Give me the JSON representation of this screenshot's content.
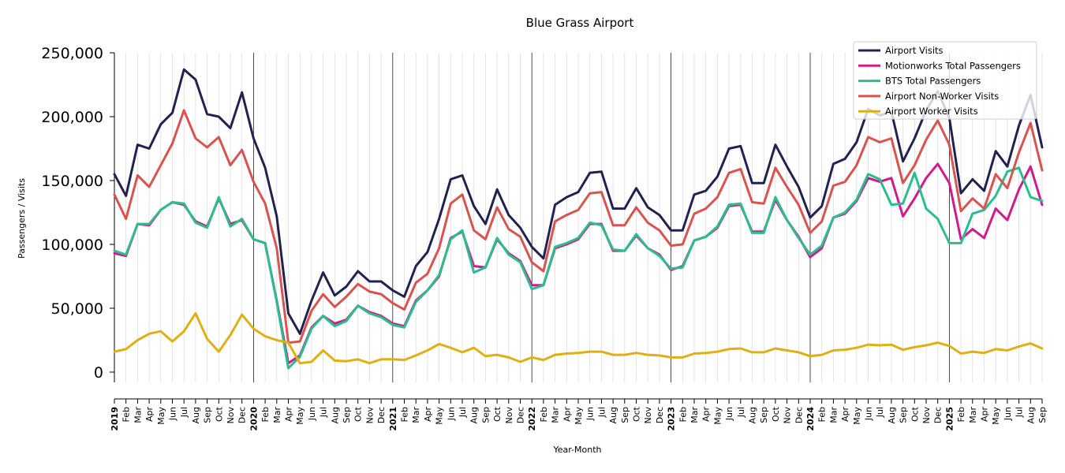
{
  "chart_data": {
    "type": "line",
    "title": "Blue Grass Airport",
    "xlabel": "Year-Month",
    "ylabel": "Passengers / Visits",
    "ylim": [
      -8000,
      252000
    ],
    "y_ticks": [
      0,
      50000,
      100000,
      150000,
      200000,
      250000
    ],
    "y_tick_labels": [
      "0",
      "50,000",
      "100,000",
      "150,000",
      "200,000",
      "250,000"
    ],
    "grid": "vertical monthly lines, dark line at each January",
    "legend_position": "top-right",
    "x": [
      "2019-01",
      "2019-02",
      "2019-03",
      "2019-04",
      "2019-05",
      "2019-06",
      "2019-07",
      "2019-08",
      "2019-09",
      "2019-10",
      "2019-11",
      "2019-12",
      "2020-01",
      "2020-02",
      "2020-03",
      "2020-04",
      "2020-05",
      "2020-06",
      "2020-07",
      "2020-08",
      "2020-09",
      "2020-10",
      "2020-11",
      "2020-12",
      "2021-01",
      "2021-02",
      "2021-03",
      "2021-04",
      "2021-05",
      "2021-06",
      "2021-07",
      "2021-08",
      "2021-09",
      "2021-10",
      "2021-11",
      "2021-12",
      "2022-01",
      "2022-02",
      "2022-03",
      "2022-04",
      "2022-05",
      "2022-06",
      "2022-07",
      "2022-08",
      "2022-09",
      "2022-10",
      "2022-11",
      "2022-12",
      "2023-01",
      "2023-02",
      "2023-03",
      "2023-04",
      "2023-05",
      "2023-06",
      "2023-07",
      "2023-08",
      "2023-09",
      "2023-10",
      "2023-11",
      "2023-12",
      "2024-01",
      "2024-02",
      "2024-03",
      "2024-04",
      "2024-05",
      "2024-06",
      "2024-07",
      "2024-08",
      "2024-09",
      "2024-10",
      "2024-11",
      "2024-12",
      "2025-01",
      "2025-02",
      "2025-03",
      "2025-04",
      "2025-05",
      "2025-06",
      "2025-07",
      "2025-08",
      "2025-09"
    ],
    "x_tick_labels": [
      "2019",
      "Feb",
      "Mar",
      "Apr",
      "May",
      "Jun",
      "Jul",
      "Aug",
      "Sep",
      "Oct",
      "Nov",
      "Dec",
      "2020",
      "Feb",
      "Mar",
      "Apr",
      "May",
      "Jun",
      "Jul",
      "Aug",
      "Sep",
      "Oct",
      "Nov",
      "Dec",
      "2021",
      "Feb",
      "Mar",
      "Apr",
      "May",
      "Jun",
      "Jul",
      "Aug",
      "Sep",
      "Oct",
      "Nov",
      "Dec",
      "2022",
      "Feb",
      "Mar",
      "Apr",
      "May",
      "Jun",
      "Jul",
      "Aug",
      "Sep",
      "Oct",
      "Nov",
      "Dec",
      "2023",
      "Feb",
      "Mar",
      "Apr",
      "May",
      "Jun",
      "Jul",
      "Aug",
      "Sep",
      "Oct",
      "Nov",
      "Dec",
      "2024",
      "Feb",
      "Mar",
      "Apr",
      "May",
      "Jun",
      "Jul",
      "Aug",
      "Sep",
      "Oct",
      "Nov",
      "Dec",
      "2025",
      "Feb",
      "Mar",
      "Apr",
      "May",
      "Jun",
      "Jul",
      "Aug",
      "Sep"
    ],
    "series": [
      {
        "name": "Airport Visits",
        "color": "#22224f",
        "values": [
          155000,
          138000,
          178000,
          175000,
          194000,
          203000,
          237000,
          229000,
          202000,
          200000,
          191000,
          219000,
          183000,
          160000,
          122000,
          46000,
          30000,
          56000,
          78000,
          60000,
          67000,
          79000,
          71000,
          71000,
          64000,
          59000,
          83000,
          94000,
          120000,
          151000,
          154000,
          130000,
          116000,
          143000,
          123000,
          113000,
          98000,
          89000,
          131000,
          137000,
          141000,
          156000,
          157000,
          128000,
          128000,
          144000,
          129000,
          123000,
          111000,
          111000,
          139000,
          142000,
          153000,
          175000,
          177000,
          148000,
          148000,
          178000,
          161000,
          145000,
          121000,
          130000,
          163000,
          167000,
          180000,
          206000,
          201000,
          204000,
          165000,
          183000,
          205000,
          220000,
          199000,
          140000,
          151000,
          142000,
          173000,
          161000,
          193000,
          217000,
          176000
        ]
      },
      {
        "name": "Motionworks Total Passengers",
        "color": "#d01c8b",
        "values": [
          93000,
          91000,
          116000,
          115000,
          127000,
          133000,
          131000,
          118000,
          114000,
          136000,
          116000,
          119000,
          104000,
          101000,
          56000,
          7000,
          13000,
          35000,
          44000,
          38000,
          41000,
          52000,
          47000,
          44000,
          38000,
          36000,
          56000,
          64000,
          75000,
          105000,
          110000,
          83000,
          82000,
          104000,
          93000,
          87000,
          68000,
          68000,
          97000,
          100000,
          104000,
          116000,
          116000,
          95000,
          95000,
          107000,
          97000,
          92000,
          80000,
          83000,
          103000,
          106000,
          113000,
          130000,
          131000,
          110000,
          110000,
          135000,
          119000,
          106000,
          90000,
          97000,
          121000,
          124000,
          134000,
          152000,
          149000,
          152000,
          122000,
          136000,
          152000,
          163000,
          148000,
          104000,
          112000,
          105000,
          128000,
          119000,
          143000,
          161000,
          131000
        ]
      },
      {
        "name": "BTS Total Passengers",
        "color": "#2bbd8f",
        "values": [
          95000,
          92000,
          116000,
          116000,
          127000,
          133000,
          132000,
          117000,
          113000,
          137000,
          114000,
          120000,
          104000,
          101000,
          55000,
          3000,
          12000,
          34000,
          44000,
          36000,
          40000,
          52000,
          46000,
          43000,
          37000,
          35000,
          55000,
          64000,
          76000,
          104000,
          111000,
          78000,
          82000,
          105000,
          92000,
          86000,
          65000,
          68000,
          98000,
          101000,
          105000,
          117000,
          115000,
          96000,
          95000,
          108000,
          97000,
          91000,
          81000,
          82000,
          103000,
          106000,
          114000,
          131000,
          132000,
          109000,
          109000,
          137000,
          119000,
          105000,
          92000,
          99000,
          121000,
          125000,
          135000,
          155000,
          151000,
          131000,
          132000,
          156000,
          128000,
          120000,
          101000,
          101000,
          124000,
          127000,
          138000,
          157000,
          160000,
          137000,
          134000
        ]
      },
      {
        "name": "Airport Non-Worker Visits",
        "color": "#d9534f",
        "values": [
          139000,
          120000,
          154000,
          145000,
          162000,
          179000,
          205000,
          183000,
          176000,
          184000,
          162000,
          174000,
          149000,
          132000,
          97000,
          23000,
          24000,
          48000,
          61000,
          51000,
          59000,
          69000,
          63000,
          61000,
          54000,
          49000,
          70000,
          77000,
          97000,
          132000,
          139000,
          111000,
          104000,
          129000,
          112000,
          106000,
          86000,
          79000,
          118000,
          123000,
          127000,
          140000,
          141000,
          115000,
          115000,
          129000,
          117000,
          111000,
          99000,
          100000,
          124000,
          128000,
          137000,
          156000,
          159000,
          133000,
          132000,
          160000,
          145000,
          131000,
          109000,
          118000,
          146000,
          149000,
          162000,
          184000,
          180000,
          183000,
          148000,
          162000,
          182000,
          197000,
          178000,
          126000,
          136000,
          128000,
          155000,
          144000,
          172000,
          195000,
          158000
        ]
      },
      {
        "name": "Airport Worker Visits",
        "color": "#dfb013",
        "values": [
          16000,
          18000,
          25000,
          30000,
          32000,
          24000,
          32000,
          46000,
          26000,
          16000,
          29000,
          45000,
          34000,
          28000,
          25000,
          23000,
          7000,
          8000,
          17000,
          9000,
          8500,
          10000,
          7000,
          10000,
          10000,
          9500,
          13000,
          17000,
          22000,
          19000,
          15500,
          19000,
          12500,
          13500,
          11500,
          8000,
          11500,
          9500,
          13500,
          14500,
          15000,
          16000,
          16000,
          13500,
          13500,
          15000,
          13500,
          13000,
          11500,
          11500,
          14500,
          15000,
          16000,
          18000,
          18500,
          15500,
          15500,
          18500,
          17000,
          15500,
          12500,
          13500,
          17000,
          17500,
          19000,
          21500,
          21000,
          21500,
          17500,
          19500,
          21000,
          23000,
          20500,
          14500,
          16000,
          15000,
          18000,
          17000,
          20000,
          22500,
          18500
        ]
      }
    ]
  }
}
